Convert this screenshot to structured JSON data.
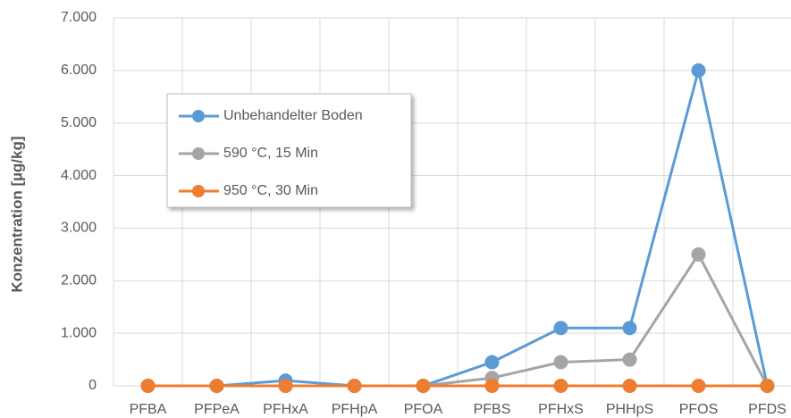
{
  "chart_data": {
    "type": "line",
    "y_label": "Konzentration [µg/kg]",
    "categories": [
      "PFBA",
      "PFPeA",
      "PFHxA",
      "PFHpA",
      "PFOA",
      "PFBS",
      "PFHxS",
      "PHHpS",
      "PFOS",
      "PFDS"
    ],
    "series": [
      {
        "name": "Unbehandelter Boden",
        "color": "#5b9bd5",
        "values": [
          0,
          0,
          100,
          0,
          0,
          450,
          1100,
          1100,
          6000,
          0
        ]
      },
      {
        "name": "590 °C, 15 Min",
        "color": "#a5a5a5",
        "values": [
          0,
          0,
          0,
          0,
          0,
          150,
          450,
          500,
          2500,
          0
        ]
      },
      {
        "name": "950 °C, 30 Min",
        "color": "#ed7d31",
        "values": [
          0,
          0,
          0,
          0,
          0,
          0,
          0,
          0,
          0,
          0
        ]
      }
    ],
    "ylim": [
      0,
      7000
    ],
    "yticks": [
      0,
      {
        "value": 1000,
        "label": "1.000"
      },
      {
        "value": 2000,
        "label": "2.000"
      },
      {
        "value": 3000,
        "label": "3.000"
      },
      {
        "value": 4000,
        "label": "4.000"
      },
      {
        "value": 5000,
        "label": "5.000"
      },
      {
        "value": 6000,
        "label": "6.000"
      },
      {
        "value": 7000,
        "label": "7.000"
      }
    ],
    "grid": true
  }
}
